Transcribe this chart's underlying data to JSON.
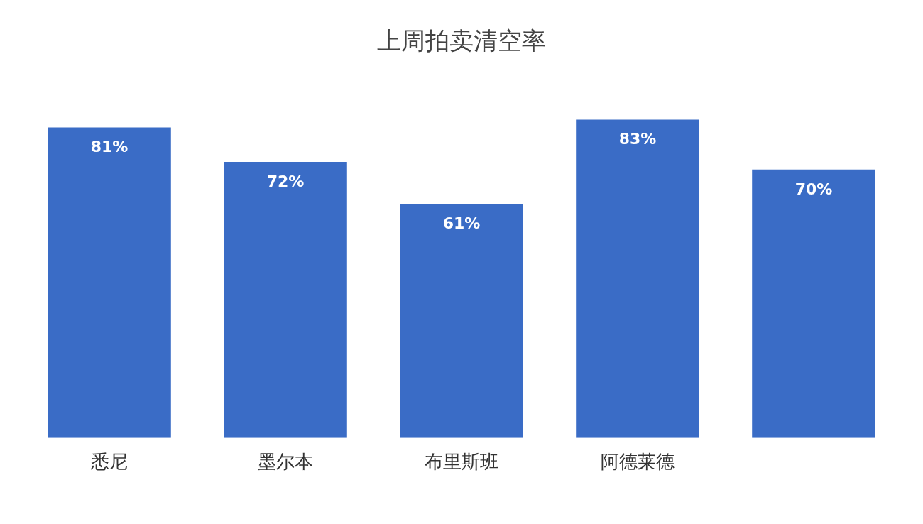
{
  "chart_data": {
    "type": "bar",
    "title": "上周拍卖清空率",
    "categories": [
      "悉尼",
      "墨尔本",
      "布里斯班",
      "阿德莱德",
      null
    ],
    "values": [
      81,
      72,
      61,
      83,
      70
    ],
    "value_labels": [
      "81%",
      "72%",
      "61%",
      "83%",
      "70%"
    ],
    "color": "#3a6cc6",
    "grid": false,
    "legend": false
  }
}
